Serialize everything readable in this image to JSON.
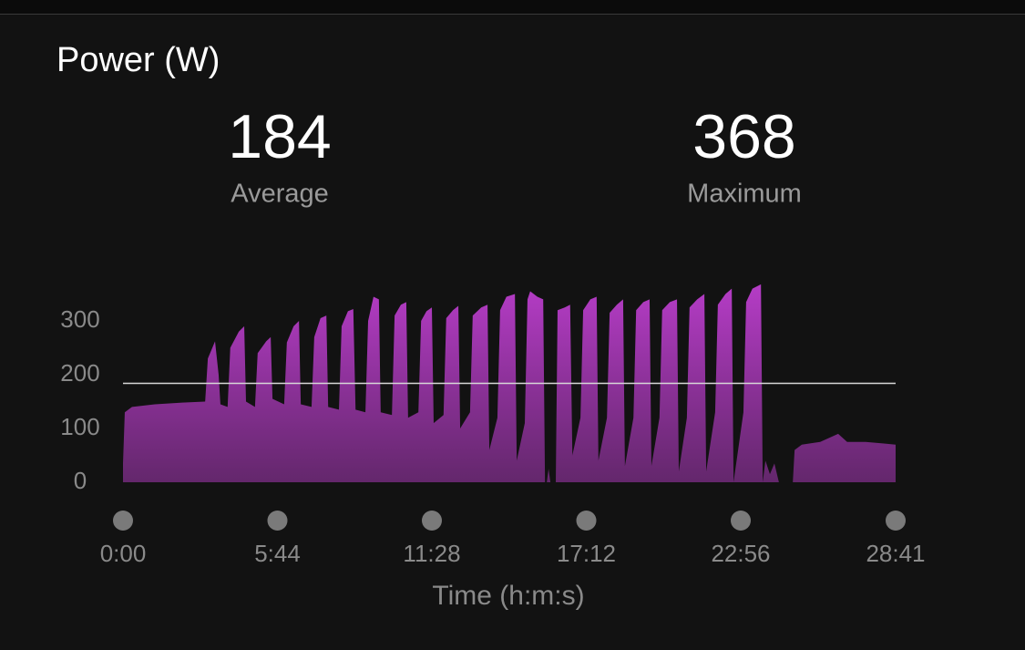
{
  "chart_data": {
    "type": "area",
    "title": "Power (W)",
    "stats": [
      {
        "value": 184,
        "label": "Average"
      },
      {
        "value": 368,
        "label": "Maximum"
      }
    ],
    "x_label": "Time (h:m:s)",
    "x": [
      0,
      4,
      20,
      71,
      132,
      183,
      189,
      205,
      213,
      217,
      233,
      239,
      258,
      270,
      274,
      294,
      300,
      319,
      329,
      333,
      359,
      365,
      380,
      392,
      396,
      420,
      426,
      440,
      453,
      457,
      481,
      487,
      501,
      513,
      518,
      540,
      546,
      558,
      570,
      574,
      599,
      605,
      619,
      631,
      635,
      658,
      664,
      676,
      688,
      692,
      714,
      720,
      735,
      747,
      751,
      773,
      779,
      798,
      812,
      816,
      834,
      840,
      854,
      873,
      877,
      895,
      901,
      907,
      923,
      936,
      940,
      944,
      948,
      952,
      964,
      968,
      984,
      996,
      1001,
      1019,
      1025,
      1041,
      1055,
      1059,
      1078,
      1084,
      1100,
      1114,
      1118,
      1137,
      1143,
      1159,
      1173,
      1177,
      1195,
      1201,
      1218,
      1234,
      1238,
      1256,
      1262,
      1279,
      1295,
      1299,
      1319,
      1325,
      1342,
      1356,
      1360,
      1382,
      1388,
      1402,
      1421,
      1425,
      1431,
      1441,
      1451,
      1461,
      1465,
      1492,
      1496,
      1512,
      1553,
      1593,
      1613,
      1654,
      1695,
      1721
    ],
    "values": [
      35,
      130,
      140,
      145,
      148,
      150,
      230,
      262,
      200,
      145,
      140,
      250,
      280,
      290,
      150,
      140,
      240,
      262,
      270,
      155,
      145,
      260,
      290,
      300,
      145,
      140,
      270,
      305,
      310,
      140,
      135,
      290,
      318,
      322,
      135,
      130,
      300,
      345,
      340,
      130,
      125,
      310,
      330,
      335,
      120,
      130,
      300,
      318,
      325,
      110,
      125,
      305,
      320,
      328,
      100,
      130,
      310,
      325,
      330,
      60,
      120,
      320,
      345,
      350,
      40,
      110,
      340,
      355,
      345,
      340,
      0,
      0,
      25,
      0,
      0,
      320,
      325,
      330,
      50,
      120,
      320,
      340,
      345,
      40,
      120,
      315,
      330,
      340,
      30,
      120,
      320,
      335,
      340,
      30,
      120,
      320,
      335,
      340,
      20,
      120,
      325,
      340,
      350,
      20,
      130,
      330,
      350,
      360,
      0,
      130,
      335,
      360,
      368,
      0,
      40,
      15,
      35,
      0,
      0,
      0,
      60,
      70,
      75,
      90,
      75,
      75,
      72,
      70
    ],
    "color": "#b53cc6",
    "xlim": [
      0,
      1721
    ],
    "xticks": [
      {
        "value": 0,
        "label": "0:00"
      },
      {
        "value": 344,
        "label": "5:44"
      },
      {
        "value": 688,
        "label": "11:28"
      },
      {
        "value": 1032,
        "label": "17:12"
      },
      {
        "value": 1376,
        "label": "22:56"
      },
      {
        "value": 1721,
        "label": "28:41"
      }
    ],
    "ylim": [
      0,
      370
    ],
    "yticks": [
      0,
      100,
      200,
      300
    ]
  }
}
